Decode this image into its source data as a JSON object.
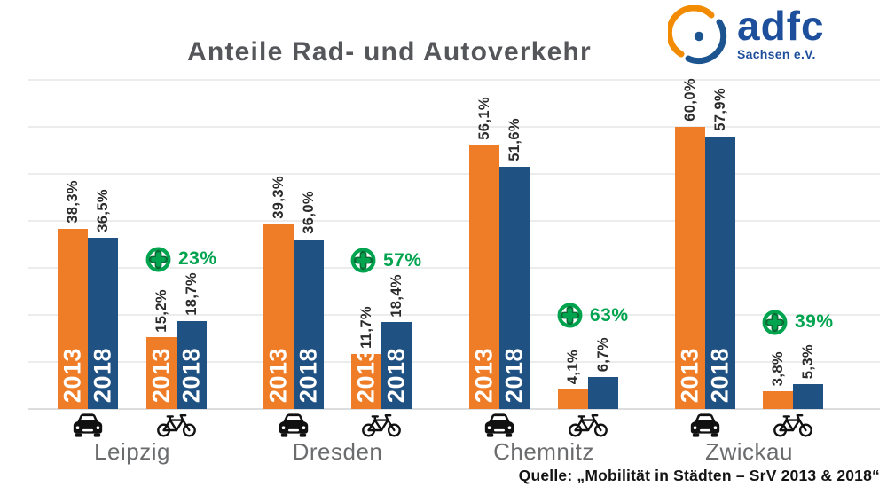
{
  "title": "Anteile Rad- und Autoverkehr",
  "logo": {
    "name": "adfc",
    "subtitle": "Sachsen e.V."
  },
  "source": "Quelle: „Mobilität in Städten – SrV 2013 & 2018“",
  "colors": {
    "bar_2013_orange": "#ef7c26",
    "bar_2018_blue": "#1f5182",
    "badge_green": "#00a44f",
    "badge_green_dark": "#0a6b35",
    "title_gray": "#54565a",
    "city_gray": "#6b6c6e",
    "grid_gray": "#ebecec",
    "logo_blue": "#1e4f9c",
    "logo_orange": "#f28b00",
    "icon_black": "#111111"
  },
  "chart_data": {
    "type": "bar",
    "title": "Anteile Rad- und Autoverkehr",
    "unit": "%",
    "ylim": [
      0,
      70
    ],
    "grid_step": 10,
    "grid": "on",
    "legend_position": "in-bar-year-labels",
    "series_years": [
      "2013",
      "2018"
    ],
    "groups": [
      {
        "city": "Leipzig",
        "modes": [
          {
            "mode": "car",
            "values": [
              38.3,
              36.5
            ],
            "labels": [
              "38,3%",
              "36,5%"
            ],
            "year_in_bar": true
          },
          {
            "mode": "bike",
            "values": [
              15.2,
              18.7
            ],
            "labels": [
              "15,2%",
              "18,7%"
            ],
            "year_in_bar": true
          }
        ],
        "bike_change": "23%"
      },
      {
        "city": "Dresden",
        "modes": [
          {
            "mode": "car",
            "values": [
              39.3,
              36.0
            ],
            "labels": [
              "39,3%",
              "36,0%"
            ],
            "year_in_bar": true
          },
          {
            "mode": "bike",
            "values": [
              11.7,
              18.4
            ],
            "labels": [
              "11,7%",
              "18,4%"
            ],
            "year_in_bar": true
          }
        ],
        "bike_change": "57%"
      },
      {
        "city": "Chemnitz",
        "modes": [
          {
            "mode": "car",
            "values": [
              56.1,
              51.6
            ],
            "labels": [
              "56,1%",
              "51,6%"
            ],
            "year_in_bar": true
          },
          {
            "mode": "bike",
            "values": [
              4.1,
              6.7
            ],
            "labels": [
              "4,1%",
              "6,7%"
            ],
            "year_in_bar": false
          }
        ],
        "bike_change": "63%"
      },
      {
        "city": "Zwickau",
        "modes": [
          {
            "mode": "car",
            "values": [
              60.0,
              57.9
            ],
            "labels": [
              "60,0%",
              "57,9%"
            ],
            "year_in_bar": true
          },
          {
            "mode": "bike",
            "values": [
              3.8,
              5.3
            ],
            "labels": [
              "3,8%",
              "5,3%"
            ],
            "year_in_bar": false
          }
        ],
        "bike_change": "39%"
      }
    ]
  }
}
